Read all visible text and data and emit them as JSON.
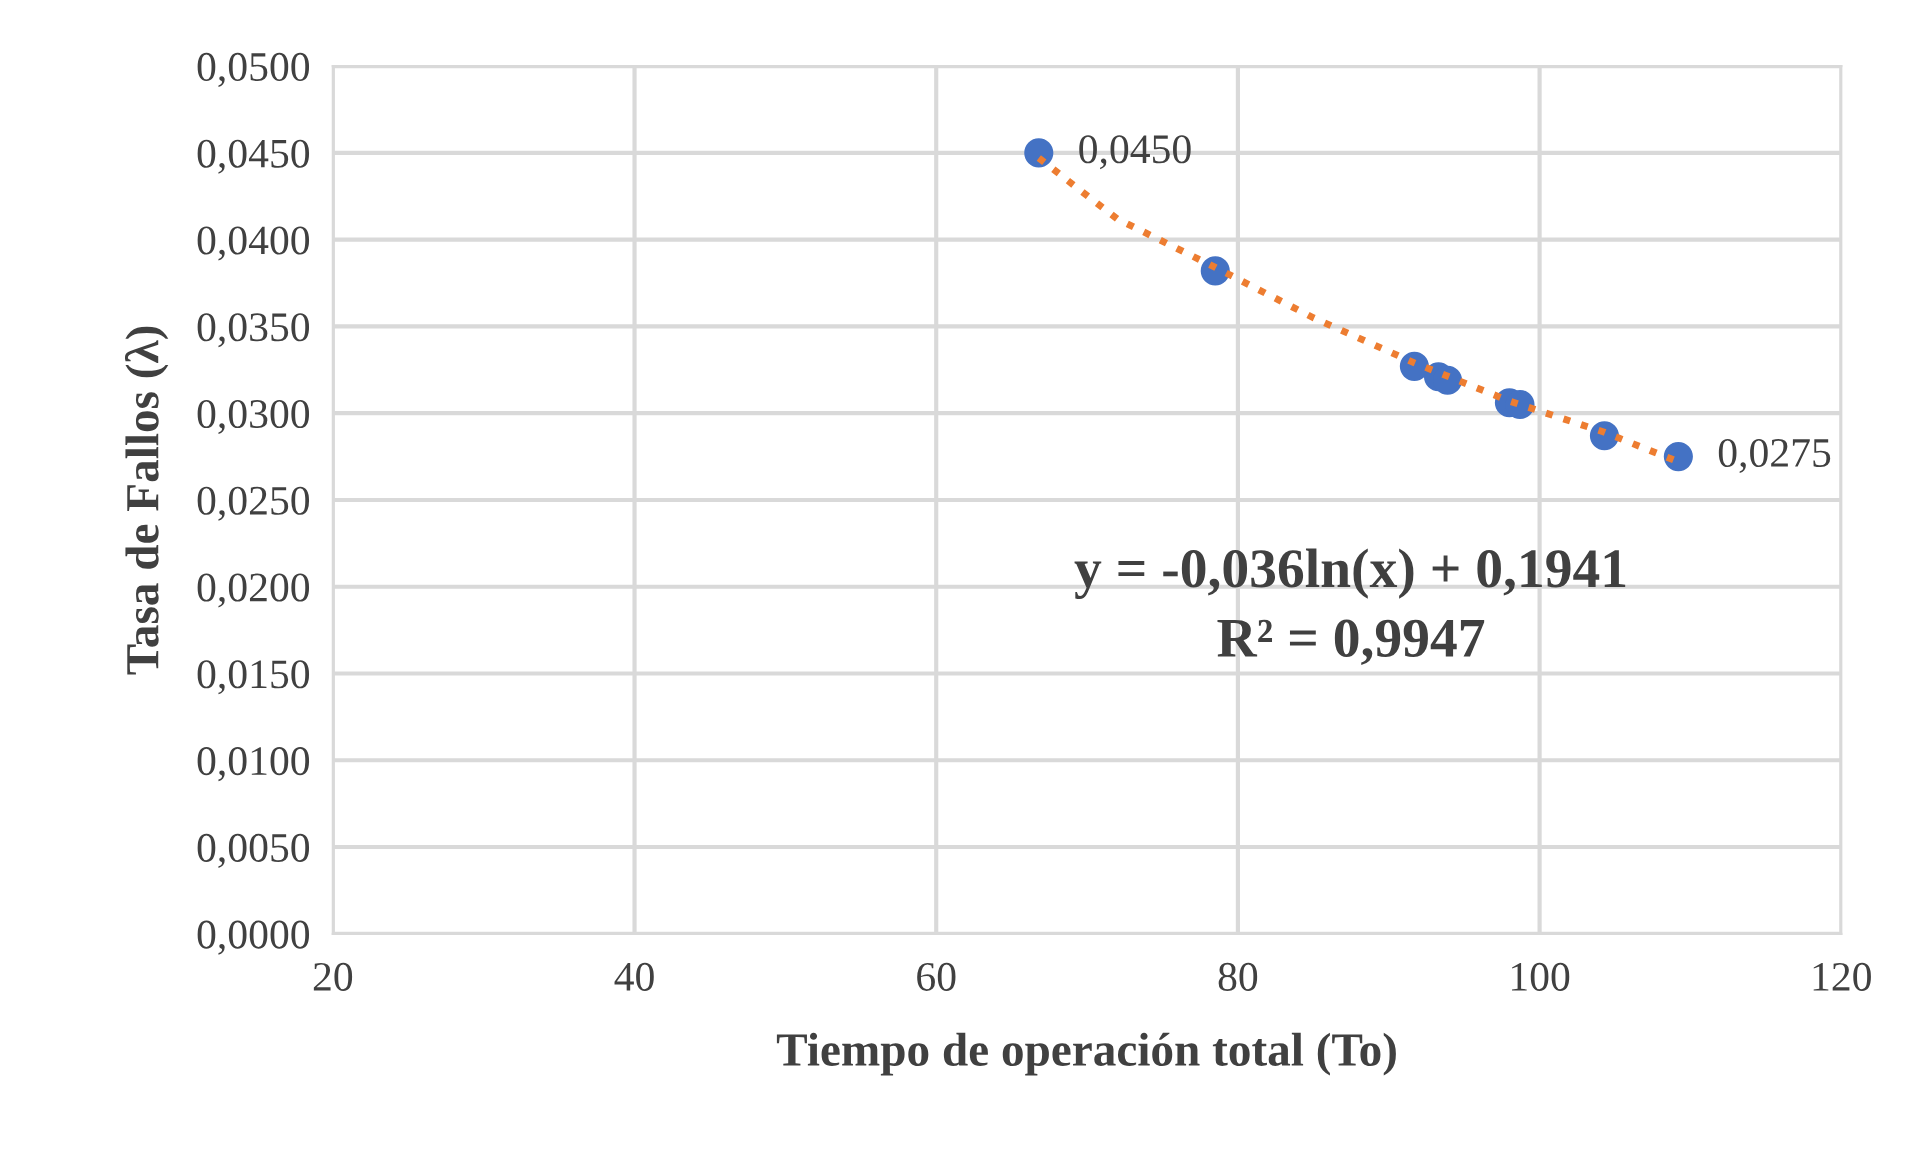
{
  "chart_data": {
    "type": "scatter",
    "xlabel": "Tiempo de operación total (To)",
    "ylabel": "Tasa de Fallos (λ)",
    "xlim": [
      20,
      120
    ],
    "xticks": [
      20,
      40,
      60,
      80,
      100,
      120
    ],
    "ylim": [
      0,
      0.05
    ],
    "yticks": [
      {
        "value": 0,
        "label": "0,0000"
      },
      {
        "value": 0.005,
        "label": "0,0050"
      },
      {
        "value": 0.01,
        "label": "0,0100"
      },
      {
        "value": 0.015,
        "label": "0,0150"
      },
      {
        "value": 0.02,
        "label": "0,0200"
      },
      {
        "value": 0.025,
        "label": "0,0250"
      },
      {
        "value": 0.03,
        "label": "0,0300"
      },
      {
        "value": 0.035,
        "label": "0,0350"
      },
      {
        "value": 0.04,
        "label": "0,0400"
      },
      {
        "value": 0.045,
        "label": "0,0450"
      },
      {
        "value": 0.05,
        "label": "0,0500"
      }
    ],
    "grid": true,
    "legend": false,
    "series": [
      {
        "color": "#4472c4",
        "marker": "circle",
        "x": [
          66.8,
          78.5,
          91.7,
          93.3,
          93.9,
          98.0,
          98.7,
          104.3,
          109.2
        ],
        "values": [
          0.045,
          0.0382,
          0.0327,
          0.0321,
          0.0319,
          0.0306,
          0.0305,
          0.0287,
          0.0275
        ],
        "value_labels": [
          "0,0450",
          null,
          null,
          null,
          null,
          null,
          null,
          null,
          "0,0275"
        ]
      },
      {
        "type": "line",
        "color": "#ed7d31",
        "line_style": "dotted",
        "marker": "none",
        "x": [
          66.8,
          72,
          78.5,
          85,
          91.7,
          98.0,
          104.3,
          109.2
        ],
        "values": [
          0.0447,
          0.0412,
          0.0384,
          0.0355,
          0.0329,
          0.0307,
          0.0289,
          0.0272
        ]
      }
    ],
    "annotations": [
      "y = -0,036ln(x) + 0,1941",
      "R² = 0,9947"
    ]
  }
}
